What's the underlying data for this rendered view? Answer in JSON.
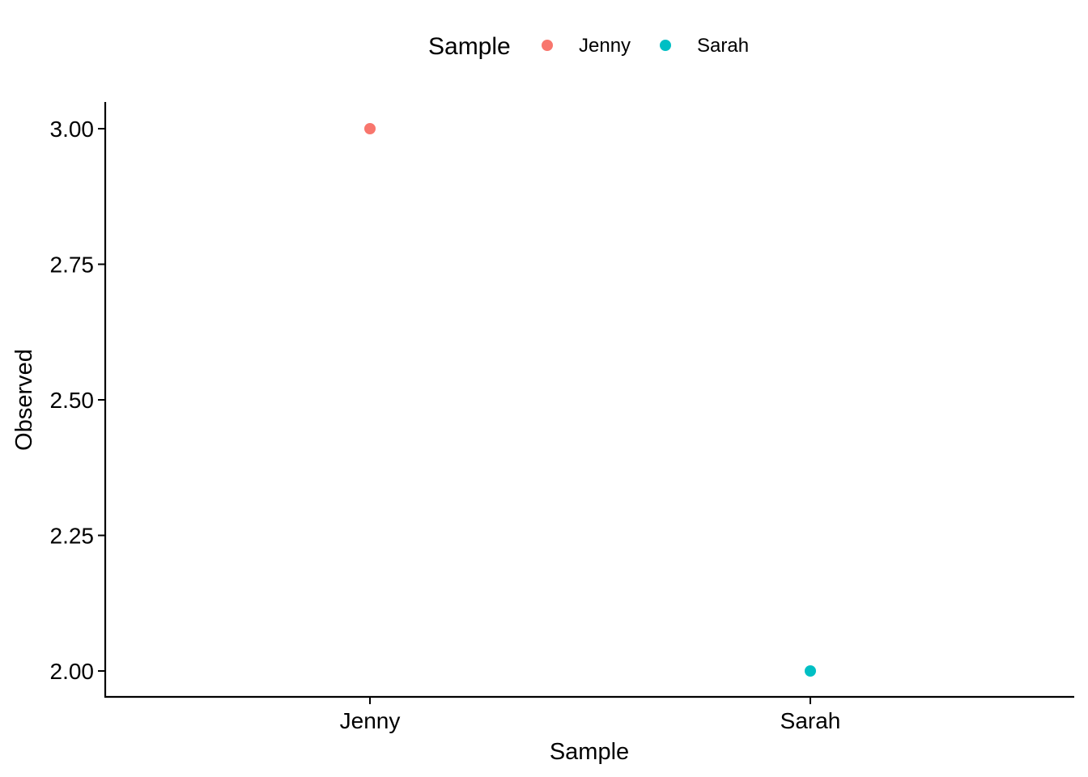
{
  "chart_data": {
    "type": "scatter",
    "title": "",
    "xlabel": "Sample",
    "ylabel": "Observed",
    "categories": [
      "Jenny",
      "Sarah"
    ],
    "series": [
      {
        "name": "Jenny",
        "color": "#F8766D",
        "points": [
          {
            "x": "Jenny",
            "y": 3.0
          }
        ]
      },
      {
        "name": "Sarah",
        "color": "#00BFC4",
        "points": [
          {
            "x": "Sarah",
            "y": 2.0
          }
        ]
      }
    ],
    "ylim": [
      1.95,
      3.05
    ],
    "yticks": [
      2.0,
      2.25,
      2.5,
      2.75,
      3.0
    ],
    "ytick_labels": [
      "2.00",
      "2.25",
      "2.50",
      "2.75",
      "3.00"
    ],
    "grid": false,
    "legend": {
      "title": "Sample",
      "placement": "top",
      "entries": [
        {
          "label": "Jenny",
          "color": "#F8766D"
        },
        {
          "label": "Sarah",
          "color": "#00BFC4"
        }
      ]
    }
  }
}
